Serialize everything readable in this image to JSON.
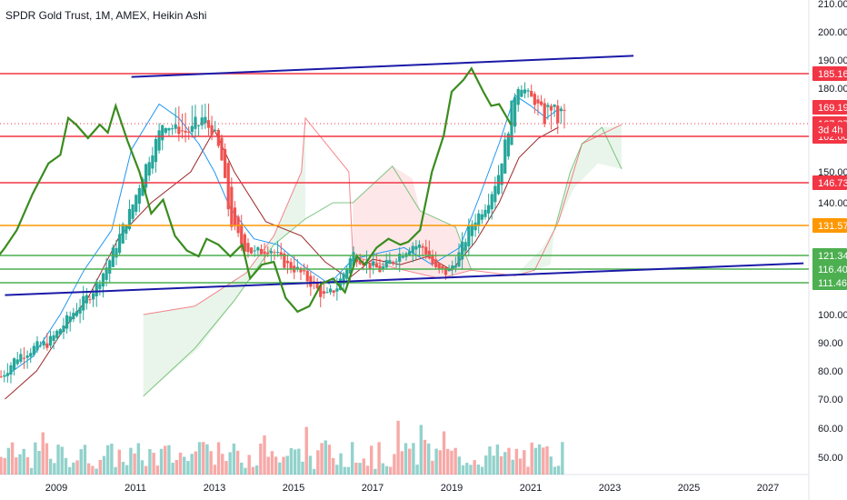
{
  "title": "SPDR Gold Trust, 1M, AMEX, Heikin Ashi",
  "chart_data": {
    "type": "candlestick",
    "title": "SPDR Gold Trust, 1M, AMEX, Heikin Ashi",
    "y_ticks": [
      50,
      60,
      70,
      80,
      90,
      100,
      140,
      150,
      180,
      190,
      200,
      210
    ],
    "y_ticks_labels": [
      "50.00",
      "60.00",
      "70.00",
      "80.00",
      "90.00",
      "100.00",
      "140.00",
      "150.00",
      "180.00",
      "190.00",
      "200.00",
      "210.00"
    ],
    "x_ticks": [
      "2009",
      "2011",
      "2013",
      "2015",
      "2017",
      "2019",
      "2021",
      "2023",
      "2025",
      "2027"
    ],
    "x_tick_years": [
      2009,
      2011,
      2013,
      2015,
      2017,
      2019,
      2021,
      2023,
      2025,
      2027
    ],
    "horizontal_levels": [
      {
        "value": 185.16,
        "label": "185.16",
        "color": "#f23645"
      },
      {
        "value": 162.6,
        "label": "162.60",
        "color": "#f23645"
      },
      {
        "value": 146.73,
        "label": "146.73",
        "color": "#f23645"
      },
      {
        "value": 131.57,
        "label": "131.57",
        "color": "#ff9800"
      },
      {
        "value": 121.34,
        "label": "121.34",
        "color": "#4caf50"
      },
      {
        "value": 116.4,
        "label": "116.40",
        "color": "#4caf50"
      },
      {
        "value": 111.46,
        "label": "111.46",
        "color": "#4caf50"
      }
    ],
    "price_badges": [
      {
        "value": 169.19,
        "label": "169.19",
        "color": "#f23645"
      },
      {
        "value": 167.37,
        "label": "167.37",
        "color": "#f23645"
      },
      {
        "value": 165.2,
        "label": "3d 4h",
        "color": "#f23645"
      }
    ],
    "trendlines": [
      {
        "name": "upper",
        "points": [
          [
            2010.9,
            184.0
          ],
          [
            2023.6,
            191.5
          ]
        ],
        "color": "#1a1aa8"
      },
      {
        "name": "lower",
        "points": [
          [
            2007.7,
            107.0
          ],
          [
            2027.9,
            118.5
          ]
        ],
        "color": "#1a1aa8"
      }
    ],
    "green_series": [
      [
        2007.8,
        103
      ],
      [
        2008.3,
        115
      ],
      [
        2008.8,
        124
      ],
      [
        2009.1,
        130
      ],
      [
        2009.5,
        143
      ],
      [
        2009.9,
        153
      ],
      [
        2010.2,
        156
      ],
      [
        2010.4,
        168
      ],
      [
        2010.6,
        167
      ],
      [
        2010.9,
        162
      ],
      [
        2011.2,
        167
      ],
      [
        2011.4,
        164
      ],
      [
        2011.6,
        170
      ],
      [
        2011.9,
        161
      ],
      [
        2012.2,
        150
      ],
      [
        2012.5,
        136
      ],
      [
        2012.8,
        141
      ],
      [
        2013.1,
        128
      ],
      [
        2013.4,
        123
      ],
      [
        2013.7,
        121
      ],
      [
        2013.9,
        127
      ],
      [
        2014.2,
        125
      ],
      [
        2014.5,
        121
      ],
      [
        2014.8,
        125
      ],
      [
        2015.0,
        113
      ],
      [
        2015.3,
        118
      ],
      [
        2015.6,
        119
      ],
      [
        2015.9,
        106
      ],
      [
        2016.2,
        101
      ],
      [
        2016.5,
        103
      ],
      [
        2016.8,
        111
      ],
      [
        2017.1,
        113
      ],
      [
        2017.4,
        108
      ],
      [
        2017.7,
        121
      ],
      [
        2017.9,
        118
      ],
      [
        2018.2,
        124
      ],
      [
        2018.5,
        127
      ],
      [
        2018.8,
        125
      ],
      [
        2019.0,
        126
      ],
      [
        2019.3,
        130
      ],
      [
        2019.6,
        150
      ],
      [
        2019.9,
        163
      ],
      [
        2020.1,
        178
      ],
      [
        2020.4,
        183
      ],
      [
        2020.6,
        187
      ],
      [
        2020.9,
        178
      ],
      [
        2021.1,
        170
      ],
      [
        2021.3,
        171
      ],
      [
        2021.6,
        167
      ]
    ],
    "volume_bars_count": 148
  }
}
